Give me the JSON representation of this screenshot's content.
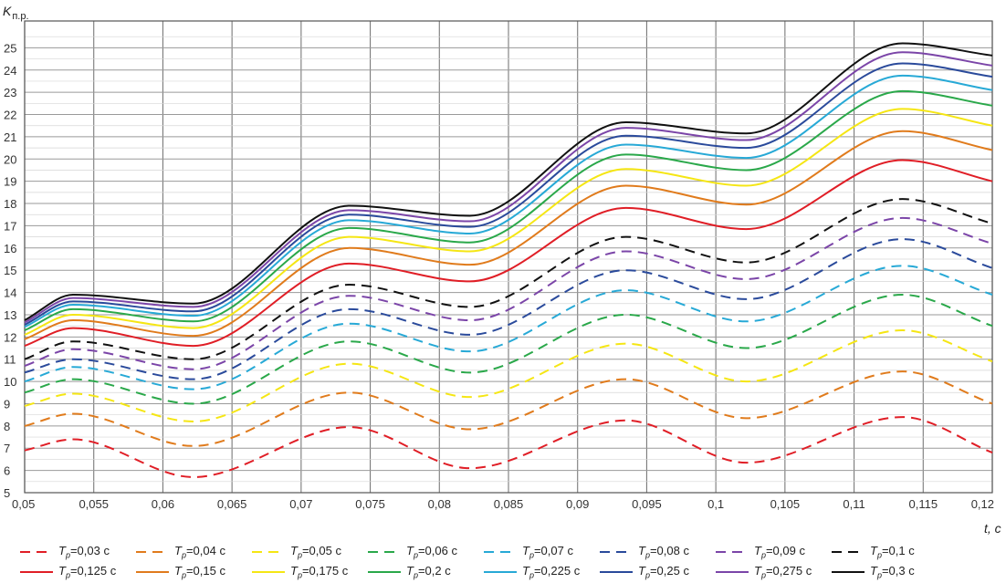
{
  "chart_data": {
    "type": "line",
    "ylabel": "K",
    "ylabel_sub": "п.р.",
    "xlabel": "t, c",
    "xlim": [
      0.05,
      0.12
    ],
    "ylim": [
      5,
      26
    ],
    "x_ticks": [
      "0,05",
      "0,055",
      "0,06",
      "0,065",
      "0,07",
      "0,075",
      "0,08",
      "0,085",
      "0,09",
      "0,095",
      "0,1",
      "0,105",
      "0,11",
      "0,115",
      "0,12"
    ],
    "y_ticks": [
      "5",
      "6",
      "7",
      "8",
      "9",
      "10",
      "11",
      "12",
      "13",
      "14",
      "15",
      "16",
      "17",
      "18",
      "19",
      "20",
      "21",
      "22",
      "23",
      "24",
      "25"
    ],
    "grid": true,
    "legend_position": "bottom",
    "legend_symbol": "T",
    "legend_subscript": "p",
    "x_samples": [
      0.05,
      0.0535,
      0.0622,
      0.0735,
      0.0822,
      0.0935,
      0.1022,
      0.1135,
      0.12
    ],
    "series": [
      {
        "name": "=0,03 с",
        "color": "#e01e26",
        "dash": true,
        "values": [
          6.9,
          7.4,
          5.7,
          7.95,
          6.1,
          8.25,
          6.35,
          8.4,
          6.8
        ]
      },
      {
        "name": "=0,04 с",
        "color": "#e07b1c",
        "dash": true,
        "values": [
          8.0,
          8.55,
          7.1,
          9.5,
          7.85,
          10.1,
          8.35,
          10.45,
          9.0
        ]
      },
      {
        "name": "=0,05 с",
        "color": "#f5e614",
        "dash": true,
        "values": [
          8.9,
          9.45,
          8.2,
          10.8,
          9.3,
          11.7,
          10.0,
          12.3,
          10.9
        ]
      },
      {
        "name": "=0,06 с",
        "color": "#2aa84a",
        "dash": true,
        "values": [
          9.5,
          10.1,
          9.0,
          11.8,
          10.4,
          13.0,
          11.5,
          13.9,
          12.5
        ]
      },
      {
        "name": "=0,07 с",
        "color": "#27a9d6",
        "dash": true,
        "values": [
          10.0,
          10.65,
          9.65,
          12.6,
          11.35,
          14.1,
          12.7,
          15.2,
          13.9
        ]
      },
      {
        "name": "=0,08 с",
        "color": "#2a4a9b",
        "dash": true,
        "values": [
          10.4,
          11.0,
          10.1,
          13.25,
          12.1,
          15.0,
          13.7,
          16.4,
          15.1
        ]
      },
      {
        "name": "=0,09 с",
        "color": "#7b45a8",
        "dash": true,
        "values": [
          10.7,
          11.45,
          10.55,
          13.85,
          12.75,
          15.85,
          14.6,
          17.35,
          16.2
        ]
      },
      {
        "name": "=0,1 с",
        "color": "#111111",
        "dash": true,
        "values": [
          11.0,
          11.8,
          11.0,
          14.35,
          13.35,
          16.5,
          15.35,
          18.2,
          17.1
        ]
      },
      {
        "name": "=0,125 с",
        "color": "#e01e26",
        "dash": false,
        "values": [
          11.6,
          12.4,
          11.6,
          15.3,
          14.5,
          17.8,
          16.85,
          19.95,
          19.0
        ]
      },
      {
        "name": "=0,15 с",
        "color": "#e07b1c",
        "dash": false,
        "values": [
          11.9,
          12.75,
          12.05,
          16.0,
          15.25,
          18.8,
          17.95,
          21.25,
          20.4
        ]
      },
      {
        "name": "=0,175 с",
        "color": "#f5e614",
        "dash": false,
        "values": [
          12.1,
          13.0,
          12.4,
          16.5,
          15.85,
          19.55,
          18.8,
          22.25,
          21.5
        ]
      },
      {
        "name": "=0,2 с",
        "color": "#2aa84a",
        "dash": false,
        "values": [
          12.3,
          13.25,
          12.7,
          16.9,
          16.25,
          20.2,
          19.5,
          23.05,
          22.4
        ]
      },
      {
        "name": "=0,225 с",
        "color": "#27a9d6",
        "dash": false,
        "values": [
          12.45,
          13.45,
          12.95,
          17.25,
          16.65,
          20.65,
          20.05,
          23.75,
          23.1
        ]
      },
      {
        "name": "=0,25 с",
        "color": "#2a4a9b",
        "dash": false,
        "values": [
          12.55,
          13.6,
          13.15,
          17.5,
          16.95,
          21.05,
          20.5,
          24.3,
          23.7
        ]
      },
      {
        "name": "=0,275 с",
        "color": "#7b45a8",
        "dash": false,
        "values": [
          12.65,
          13.75,
          13.35,
          17.7,
          17.2,
          21.4,
          20.85,
          24.8,
          24.2
        ]
      },
      {
        "name": "=0,3 с",
        "color": "#111111",
        "dash": false,
        "values": [
          12.75,
          13.9,
          13.5,
          17.9,
          17.45,
          21.65,
          21.15,
          25.2,
          24.65
        ]
      }
    ]
  }
}
